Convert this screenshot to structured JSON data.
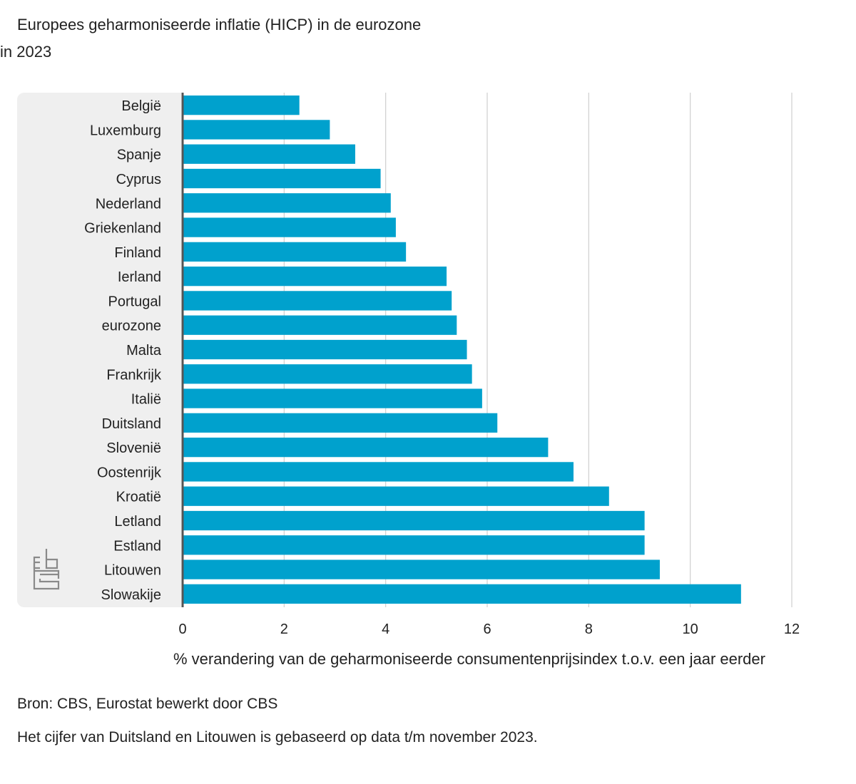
{
  "chart_data": {
    "type": "bar",
    "orientation": "horizontal",
    "title": "Europees geharmoniseerde inflatie (HICP) in de eurozone",
    "subtitle": "in 2023",
    "xlabel": "% verandering van de geharmoniseerde consumentenprijsindex t.o.v. een jaar eerder",
    "categories": [
      "België",
      "Luxemburg",
      "Spanje",
      "Cyprus",
      "Nederland",
      "Griekenland",
      "Finland",
      "Ierland",
      "Portugal",
      "eurozone",
      "Malta",
      "Frankrijk",
      "Italië",
      "Duitsland",
      "Slovenië",
      "Oostenrijk",
      "Kroatië",
      "Letland",
      "Estland",
      "Litouwen",
      "Slowakije"
    ],
    "values": [
      2.3,
      2.9,
      3.4,
      3.9,
      4.1,
      4.2,
      4.4,
      5.2,
      5.3,
      5.4,
      5.6,
      5.7,
      5.9,
      6.2,
      7.2,
      7.7,
      8.4,
      9.1,
      9.1,
      9.4,
      11.0
    ],
    "xlim": [
      0,
      12
    ],
    "xticks": [
      0,
      2,
      4,
      6,
      8,
      10,
      12
    ],
    "grid": true,
    "bar_color": "#00a1cd"
  },
  "source": "Bron: CBS, Eurostat bewerkt door CBS",
  "footnote": "Het cijfer van Duitsland en Litouwen is gebaseerd op data t/m november 2023.",
  "logo": "cbs"
}
